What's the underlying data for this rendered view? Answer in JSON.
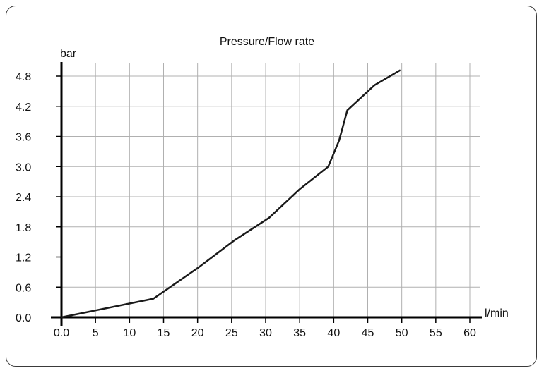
{
  "chart_data": {
    "type": "line",
    "title": "Pressure/Flow rate",
    "xlabel": "l/min",
    "ylabel": "bar",
    "xlim": [
      0,
      60
    ],
    "ylim": [
      0,
      4.8
    ],
    "x_ticks": [
      "0.0",
      "5",
      "10",
      "15",
      "20",
      "25",
      "30",
      "35",
      "40",
      "45",
      "50",
      "55",
      "60"
    ],
    "x_tick_values": [
      0,
      5,
      10,
      15,
      20,
      25,
      30,
      35,
      40,
      45,
      50,
      55,
      60
    ],
    "y_ticks": [
      "0.0",
      "0.6",
      "1.2",
      "1.8",
      "2.4",
      "3.0",
      "3.6",
      "4.2",
      "4.8"
    ],
    "y_tick_values": [
      0,
      0.6,
      1.2,
      1.8,
      2.4,
      3.0,
      3.6,
      4.2,
      4.8
    ],
    "grid": true,
    "line_color": "#1a1a1a",
    "grid_color": "#b0b0b0",
    "series": [
      {
        "x": [
          0,
          13.5,
          20,
          25.5,
          30.5,
          35,
          39.2,
          40.8,
          42,
          46,
          49.8
        ],
        "y": [
          0,
          0.37,
          0.98,
          1.54,
          1.98,
          2.55,
          3.0,
          3.52,
          4.12,
          4.62,
          4.92
        ]
      }
    ]
  }
}
